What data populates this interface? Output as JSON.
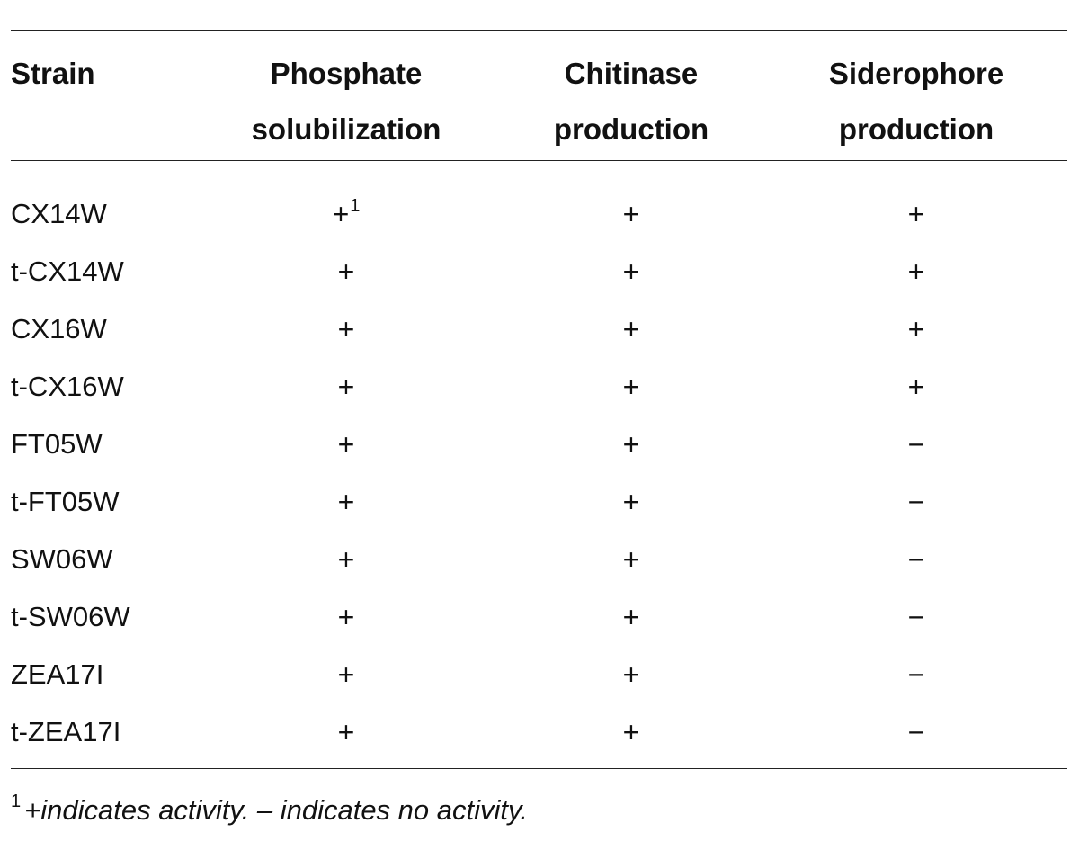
{
  "table": {
    "headers": {
      "strain": "Strain",
      "col1_line1": "Phosphate",
      "col1_line2": "solubilization",
      "col2_line1": "Chitinase",
      "col2_line2": "production",
      "col3_line1": "Siderophore",
      "col3_line2": "production"
    },
    "rows": [
      {
        "strain": "CX14W",
        "phosphate": "+",
        "phosphate_note": "1",
        "chitinase": "+",
        "siderophore": "+"
      },
      {
        "strain": "t-CX14W",
        "phosphate": "+",
        "phosphate_note": "",
        "chitinase": "+",
        "siderophore": "+"
      },
      {
        "strain": "CX16W",
        "phosphate": "+",
        "phosphate_note": "",
        "chitinase": "+",
        "siderophore": "+"
      },
      {
        "strain": "t-CX16W",
        "phosphate": "+",
        "phosphate_note": "",
        "chitinase": "+",
        "siderophore": "+"
      },
      {
        "strain": "FT05W",
        "phosphate": "+",
        "phosphate_note": "",
        "chitinase": "+",
        "siderophore": "−"
      },
      {
        "strain": "t-FT05W",
        "phosphate": "+",
        "phosphate_note": "",
        "chitinase": "+",
        "siderophore": "−"
      },
      {
        "strain": "SW06W",
        "phosphate": "+",
        "phosphate_note": "",
        "chitinase": "+",
        "siderophore": "−"
      },
      {
        "strain": "t-SW06W",
        "phosphate": "+",
        "phosphate_note": "",
        "chitinase": "+",
        "siderophore": "−"
      },
      {
        "strain": "ZEA17I",
        "phosphate": "+",
        "phosphate_note": "",
        "chitinase": "+",
        "siderophore": "−"
      },
      {
        "strain": "t-ZEA17I",
        "phosphate": "+",
        "phosphate_note": "",
        "chitinase": "+",
        "siderophore": "−"
      }
    ]
  },
  "footnote": {
    "mark": "1",
    "text": "+indicates activity. – indicates no activity."
  }
}
